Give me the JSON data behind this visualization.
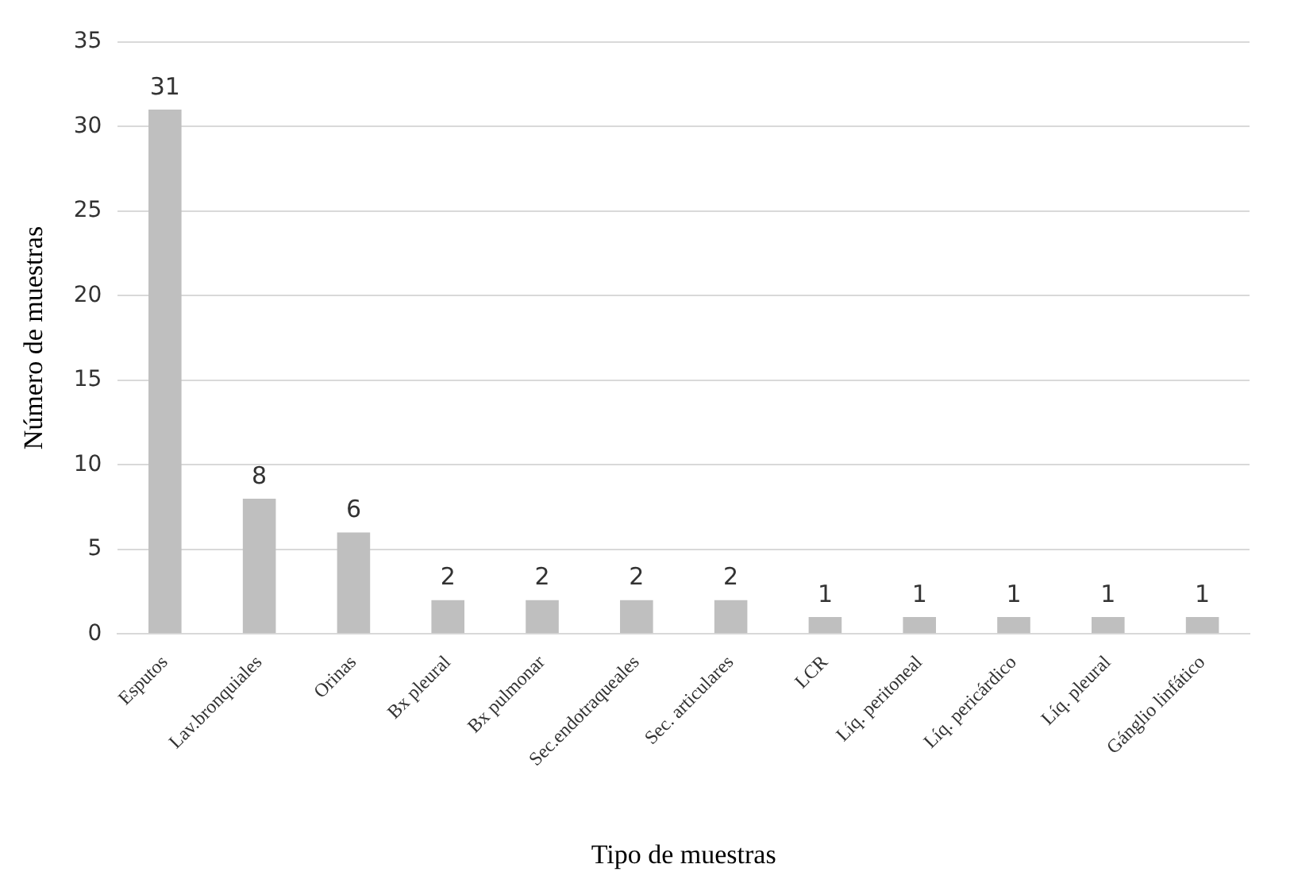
{
  "chart_data": {
    "type": "bar",
    "xlabel": "Tipo de muestras",
    "ylabel": "Número de muestras",
    "categories": [
      "Esputos",
      "Lav.bronquiales",
      "Orinas",
      "Bx pleural",
      "Bx pulmonar",
      "Sec.endotraqueales",
      "Sec. articulares",
      "LCR",
      "Líq. peritoneal",
      "Líq. pericárdico",
      "Líq. pleural",
      "Gánglio linfático"
    ],
    "values": [
      31,
      8,
      6,
      2,
      2,
      2,
      2,
      1,
      1,
      1,
      1,
      1
    ],
    "color": "#bfbfbf",
    "ylim": [
      0,
      35
    ],
    "yticks": [
      0,
      5,
      10,
      15,
      20,
      25,
      30,
      35
    ],
    "grid": "y",
    "data_labels": true
  }
}
